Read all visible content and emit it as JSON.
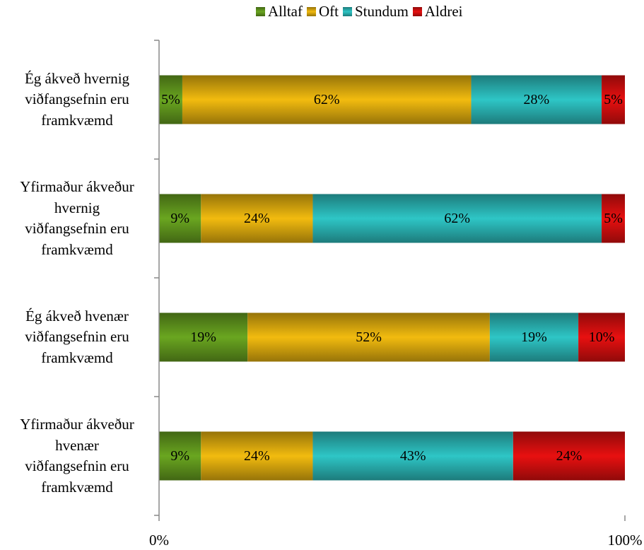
{
  "chart_data": {
    "type": "bar",
    "orientation": "horizontal",
    "stacked": "percent",
    "title": "",
    "xlabel": "",
    "ylabel": "",
    "xlim": [
      0,
      100
    ],
    "x_ticks": [
      "0%",
      "100%"
    ],
    "grid": false,
    "legend_position": "top",
    "categories": [
      [
        "Ég ákveð hvernig",
        "viðfangsefnin eru",
        "framkvæmd"
      ],
      [
        "Yfirmaður ákveður",
        "hvernig",
        "viðfangsefnin eru",
        "framkvæmd"
      ],
      [
        "Ég ákveð hvenær",
        "viðfangsefnin eru",
        "framkvæmd"
      ],
      [
        "Yfirmaður ákveður",
        "hvenær",
        "viðfangsefnin eru",
        "framkvæmd"
      ]
    ],
    "series": [
      {
        "name": "Alltaf",
        "color": "#6aa620",
        "values": [
          5,
          9,
          19,
          9
        ],
        "labels": [
          "5%",
          "9%",
          "19%",
          "9%"
        ]
      },
      {
        "name": "Oft",
        "color": "#f2bb0f",
        "values": [
          62,
          24,
          52,
          24
        ],
        "labels": [
          "62%",
          "24%",
          "52%",
          "24%"
        ]
      },
      {
        "name": "Stundum",
        "color": "#2ec6c6",
        "values": [
          28,
          62,
          19,
          43
        ],
        "labels": [
          "28%",
          "62%",
          "19%",
          "43%"
        ]
      },
      {
        "name": "Aldrei",
        "color": "#e81010",
        "values": [
          5,
          5,
          10,
          24
        ],
        "labels": [
          "5%",
          "5%",
          "10%",
          "24%"
        ]
      }
    ]
  }
}
